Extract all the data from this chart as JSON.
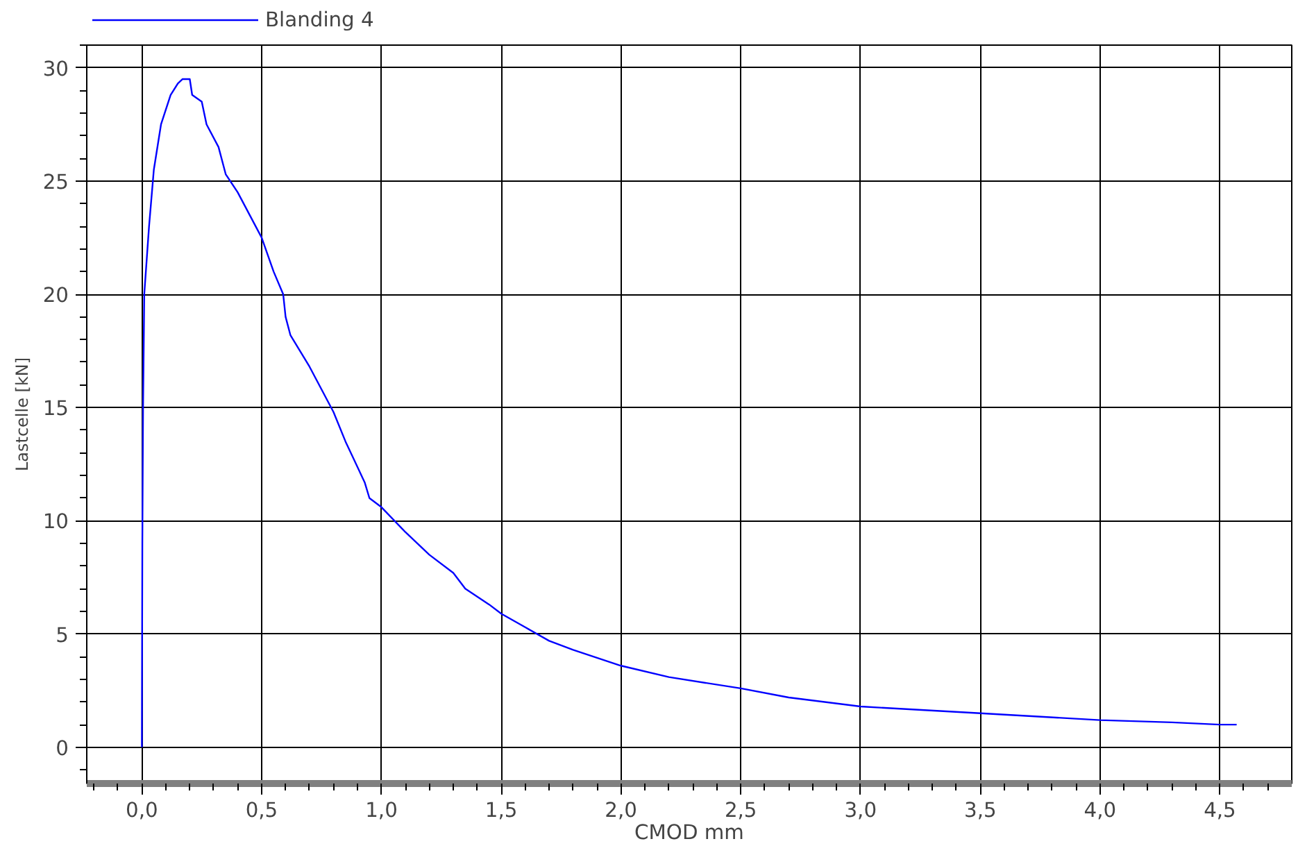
{
  "chart_data": {
    "type": "line",
    "xlabel": "CMOD mm",
    "ylabel": "Lastcelle [kN]",
    "xlim": [
      -0.23,
      4.8
    ],
    "ylim": [
      -1.6,
      31
    ],
    "xticks": [
      {
        "value": 0,
        "label": "0,0"
      },
      {
        "value": 0.5,
        "label": "0,5"
      },
      {
        "value": 1,
        "label": "1,0"
      },
      {
        "value": 1.5,
        "label": "1,5"
      },
      {
        "value": 2,
        "label": "2,0"
      },
      {
        "value": 2.5,
        "label": "2,5"
      },
      {
        "value": 3,
        "label": "3,0"
      },
      {
        "value": 3.5,
        "label": "3,5"
      },
      {
        "value": 4,
        "label": "4,0"
      },
      {
        "value": 4.5,
        "label": "4,5"
      }
    ],
    "yticks": [
      0,
      5,
      10,
      15,
      20,
      25,
      30
    ],
    "grid": true,
    "legend": "top left",
    "line_style": "solid",
    "series": [
      {
        "name": "Blanding 4",
        "color": "#0000ff",
        "x": [
          0,
          0.002,
          0.005,
          0.01,
          0.03,
          0.05,
          0.08,
          0.12,
          0.15,
          0.17,
          0.2,
          0.21,
          0.25,
          0.27,
          0.32,
          0.35,
          0.4,
          0.5,
          0.55,
          0.59,
          0.6,
          0.62,
          0.7,
          0.8,
          0.85,
          0.93,
          0.95,
          1.0,
          1.1,
          1.2,
          1.3,
          1.35,
          1.45,
          1.5,
          1.6,
          1.7,
          1.8,
          2.0,
          2.2,
          2.5,
          2.7,
          3.0,
          3.5,
          4.0,
          4.3,
          4.5,
          4.57
        ],
        "values": [
          0,
          9,
          15,
          20,
          23,
          25.5,
          27.5,
          28.8,
          29.3,
          29.5,
          29.5,
          28.8,
          28.5,
          27.5,
          26.5,
          25.3,
          24.5,
          22.5,
          21,
          20,
          19,
          18.2,
          16.8,
          14.8,
          13.5,
          11.7,
          11,
          10.6,
          9.5,
          8.5,
          7.7,
          7,
          6.3,
          5.9,
          5.3,
          4.7,
          4.3,
          3.6,
          3.1,
          2.6,
          2.2,
          1.8,
          1.5,
          1.2,
          1.1,
          1.0,
          1.0
        ]
      }
    ]
  }
}
